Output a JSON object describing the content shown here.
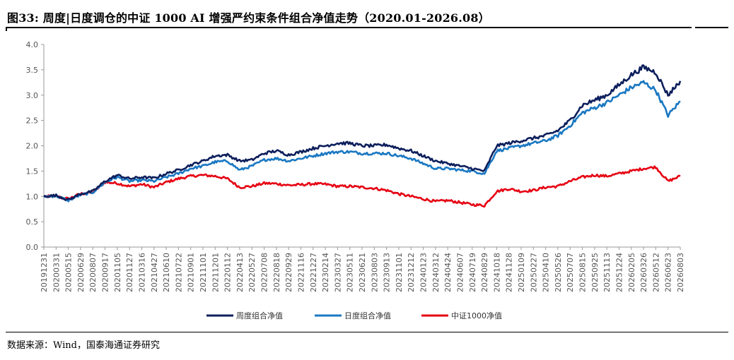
{
  "figure": {
    "title": "图33:  周度|日度调仓的中证 1000 AI 增强严约束条件组合净值走势（2020.01-2026.08）",
    "source": "数据来源：Wind，国泰海通证券研究"
  },
  "chart_data": {
    "type": "line",
    "ylim": [
      0,
      4.0
    ],
    "yticks": [
      "0.0",
      "0.5",
      "1.0",
      "1.5",
      "2.0",
      "2.5",
      "3.0",
      "3.5",
      "4.0"
    ],
    "grid": false,
    "legend_position": "bottom",
    "x_tick_labels": [
      "20191231",
      "20200331",
      "20200515",
      "20200629",
      "20200807",
      "20200917",
      "20201105",
      "20201127",
      "20210316",
      "20210427",
      "20210610",
      "20210722",
      "20210901",
      "20211101",
      "20211201",
      "20220112",
      "20220413",
      "20220527",
      "20220708",
      "20220818",
      "20220929",
      "20221116",
      "20221227",
      "20230214",
      "20230327",
      "20230511",
      "20230621",
      "20230803",
      "20230913",
      "20231101",
      "20231212",
      "20240123",
      "20240312",
      "20240424",
      "20240607",
      "20240719",
      "20240829",
      "20241018",
      "20241128",
      "20250109",
      "20250227",
      "20250410",
      "20250526",
      "20250707",
      "20250815",
      "20250925",
      "20251113",
      "20251224",
      "20260205",
      "20260326",
      "20260512",
      "20260623",
      "20260803"
    ],
    "series": [
      {
        "name": "周度组合净值",
        "color": "#0d1f5c",
        "values": [
          1.0,
          1.02,
          0.93,
          1.05,
          1.1,
          1.3,
          1.42,
          1.35,
          1.38,
          1.36,
          1.45,
          1.52,
          1.62,
          1.7,
          1.8,
          1.82,
          1.7,
          1.72,
          1.85,
          1.9,
          1.82,
          1.88,
          1.95,
          2.0,
          2.05,
          2.05,
          2.0,
          2.0,
          2.02,
          1.95,
          1.9,
          1.8,
          1.7,
          1.65,
          1.6,
          1.55,
          1.5,
          2.0,
          2.05,
          2.1,
          2.15,
          2.2,
          2.3,
          2.5,
          2.8,
          2.9,
          3.0,
          3.2,
          3.4,
          3.55,
          3.45,
          3.0,
          3.28
        ]
      },
      {
        "name": "日度组合净值",
        "color": "#1a78c2",
        "values": [
          1.0,
          1.01,
          0.92,
          1.03,
          1.08,
          1.28,
          1.38,
          1.3,
          1.32,
          1.3,
          1.38,
          1.45,
          1.55,
          1.6,
          1.68,
          1.7,
          1.52,
          1.6,
          1.72,
          1.75,
          1.7,
          1.75,
          1.8,
          1.85,
          1.88,
          1.88,
          1.85,
          1.85,
          1.85,
          1.8,
          1.75,
          1.65,
          1.55,
          1.55,
          1.52,
          1.5,
          1.45,
          1.9,
          1.95,
          2.0,
          2.05,
          2.1,
          2.2,
          2.4,
          2.65,
          2.75,
          2.85,
          3.0,
          3.15,
          3.25,
          3.1,
          2.6,
          2.88
        ]
      },
      {
        "name": "中证1000净值",
        "color": "#e60012",
        "values": [
          1.0,
          1.0,
          0.95,
          1.05,
          1.08,
          1.28,
          1.26,
          1.2,
          1.24,
          1.18,
          1.28,
          1.35,
          1.4,
          1.42,
          1.4,
          1.35,
          1.18,
          1.2,
          1.26,
          1.25,
          1.22,
          1.23,
          1.25,
          1.24,
          1.2,
          1.2,
          1.18,
          1.16,
          1.12,
          1.05,
          1.0,
          0.95,
          0.9,
          0.92,
          0.88,
          0.84,
          0.82,
          1.1,
          1.15,
          1.1,
          1.12,
          1.18,
          1.2,
          1.3,
          1.38,
          1.42,
          1.4,
          1.45,
          1.5,
          1.55,
          1.58,
          1.3,
          1.4
        ]
      }
    ]
  }
}
